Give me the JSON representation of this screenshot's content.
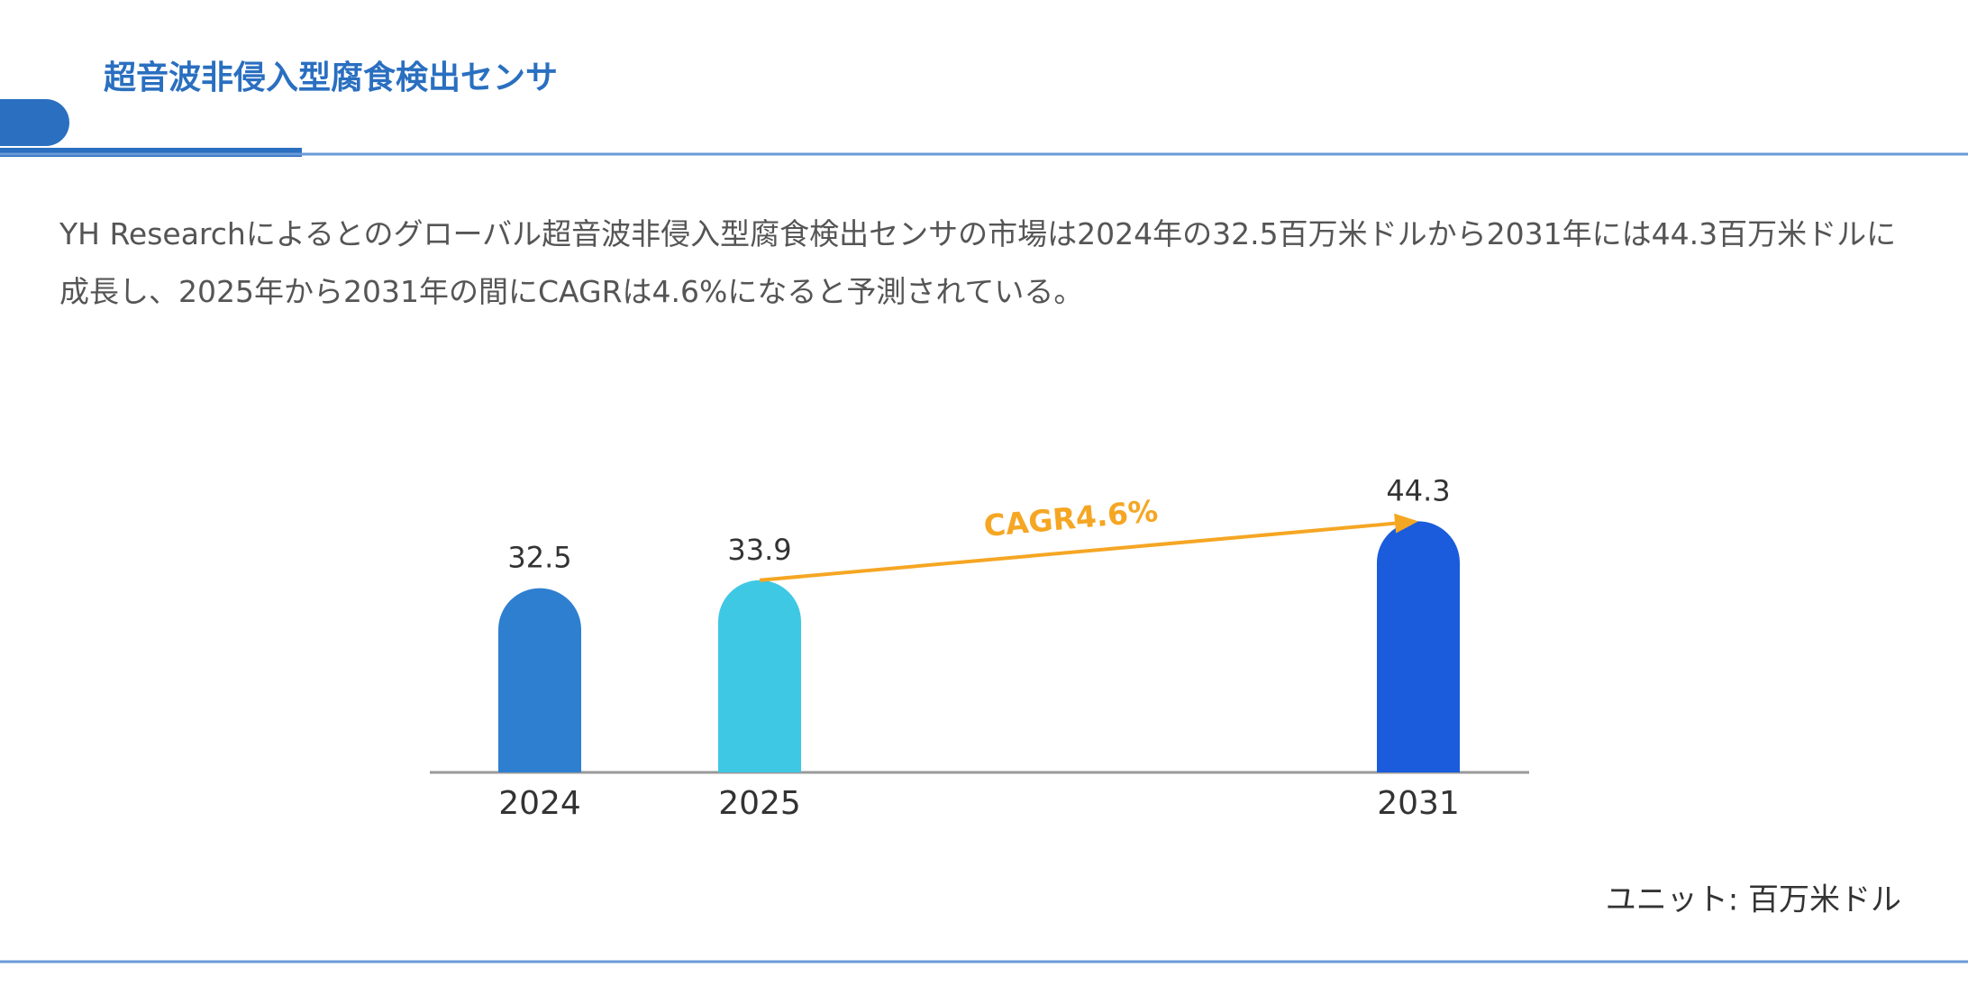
{
  "header": {
    "title": "超音波非侵入型腐食検出センサ"
  },
  "description": "YH Researchによるとのグローバル超音波非侵入型腐食検出センサの市場は2024年の32.5百万米ドルから2031年には44.3百万米ドルに成長し、2025年から2031年の間にCAGRは4.6%になると予測されている。",
  "chart_data": {
    "type": "bar",
    "categories": [
      "2024",
      "2025",
      "2031"
    ],
    "values": [
      32.5,
      33.9,
      44.3
    ],
    "colors": [
      "#2f7fd0",
      "#3ec8e4",
      "#1a5cdc"
    ],
    "annotation": "CAGR4.6%",
    "annotation_color": "#f5a623",
    "unit": "ユニット: 百万米ドル"
  }
}
